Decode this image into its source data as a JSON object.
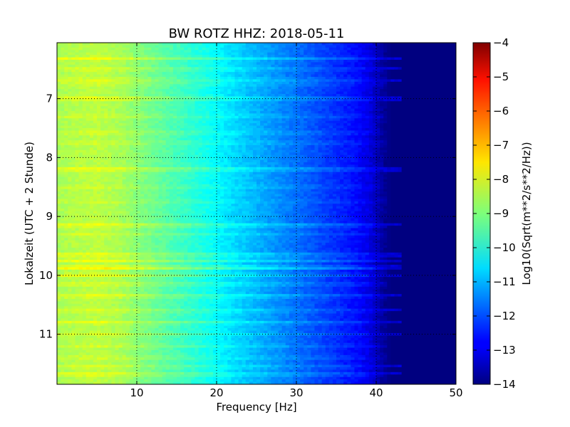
{
  "chart_data": {
    "type": "heatmap",
    "title": "BW ROTZ HHZ: 2018-05-11",
    "xlabel": "Frequency [Hz]",
    "ylabel": "Lokalzeit (UTC + 2 Stunde)",
    "colorbar_label": "Log10(Sqrt(m**2/s**2/Hz))",
    "colormap": "jet",
    "xlim": [
      0,
      50
    ],
    "ylim": [
      11.85,
      6.05
    ],
    "y_inverted": true,
    "clim": [
      -14,
      -4
    ],
    "grid": true,
    "x_ticks": [
      10,
      20,
      30,
      40,
      50
    ],
    "x_tick_labels": [
      "10",
      "20",
      "30",
      "40",
      "50"
    ],
    "y_ticks": [
      7,
      8,
      9,
      10,
      11
    ],
    "y_tick_labels": [
      "7",
      "8",
      "9",
      "10",
      "11"
    ],
    "colorbar_ticks": [
      -4,
      -5,
      -6,
      -7,
      -8,
      -9,
      -10,
      -11,
      -12,
      -13,
      -14
    ],
    "colorbar_tick_labels": [
      "−4",
      "−5",
      "−6",
      "−7",
      "−8",
      "−9",
      "−10",
      "−11",
      "−12",
      "−13",
      "−14"
    ],
    "frequency_profile": {
      "frequency_hz": [
        0,
        2,
        5,
        8,
        10,
        13,
        16,
        19,
        22,
        25,
        28,
        31,
        34,
        37,
        39,
        40,
        41,
        42,
        44,
        50
      ],
      "log10_amplitude": [
        -8.6,
        -8.5,
        -8.4,
        -8.6,
        -8.9,
        -9.3,
        -9.7,
        -10.1,
        -10.6,
        -11.0,
        -11.4,
        -11.8,
        -12.2,
        -12.6,
        -13.0,
        -13.4,
        -13.8,
        -14.0,
        -14.0,
        -14.0
      ]
    },
    "time_bands": [
      {
        "time_h": 6.32,
        "offset": 0.6
      },
      {
        "time_h": 6.5,
        "offset": 0.45
      },
      {
        "time_h": 6.68,
        "offset": 0.5
      },
      {
        "time_h": 6.75,
        "offset": 0.35
      },
      {
        "time_h": 7.0,
        "offset": 0.7
      },
      {
        "time_h": 7.3,
        "offset": 0.35
      },
      {
        "time_h": 7.58,
        "offset": 0.35
      },
      {
        "time_h": 7.75,
        "offset": 0.3
      },
      {
        "time_h": 8.2,
        "offset": 0.8
      },
      {
        "time_h": 8.5,
        "offset": 0.3
      },
      {
        "time_h": 8.75,
        "offset": 0.25
      },
      {
        "time_h": 9.15,
        "offset": 0.75
      },
      {
        "time_h": 9.3,
        "offset": 0.3
      },
      {
        "time_h": 9.65,
        "offset": 0.7
      },
      {
        "time_h": 9.75,
        "offset": 0.7
      },
      {
        "time_h": 9.87,
        "offset": 1.1
      },
      {
        "time_h": 10.0,
        "offset": 0.6
      },
      {
        "time_h": 10.15,
        "offset": 0.5
      },
      {
        "time_h": 10.35,
        "offset": 0.6
      },
      {
        "time_h": 10.6,
        "offset": 0.45
      },
      {
        "time_h": 10.8,
        "offset": 0.55
      },
      {
        "time_h": 11.0,
        "offset": 0.35
      },
      {
        "time_h": 11.2,
        "offset": 0.35
      },
      {
        "time_h": 11.4,
        "offset": 0.35
      },
      {
        "time_h": 11.55,
        "offset": 0.4
      },
      {
        "time_h": 11.68,
        "offset": 0.65
      }
    ]
  }
}
